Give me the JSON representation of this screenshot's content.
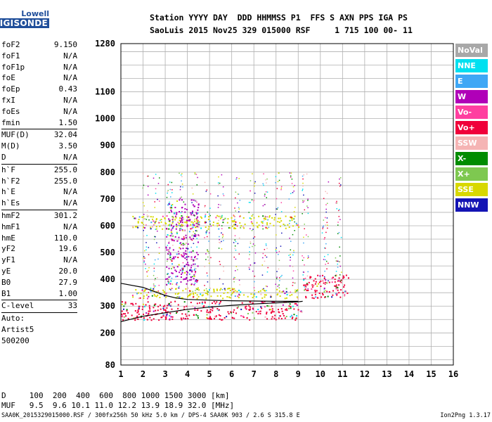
{
  "logo": {
    "line1": "Lowell",
    "line2": "DIGISONDE"
  },
  "header": {
    "line1": "Station YYYY DAY  DDD HHMMSS P1  FFS S AXN PPS IGA PS",
    "line2": "SaoLuis 2015 Nov25 329 015000 RSF     1 715 100 00- 11"
  },
  "params": {
    "g1": [
      {
        "name": "foF2",
        "value": "9.150"
      },
      {
        "name": "foF1",
        "value": "N/A"
      },
      {
        "name": "foF1p",
        "value": "N/A"
      },
      {
        "name": "foE",
        "value": "N/A"
      },
      {
        "name": "foEp",
        "value": "0.43"
      },
      {
        "name": "fxI",
        "value": "N/A"
      },
      {
        "name": "foEs",
        "value": "N/A"
      },
      {
        "name": "fmin",
        "value": "1.50"
      }
    ],
    "g2": [
      {
        "name": "MUF(D)",
        "value": "32.04"
      },
      {
        "name": "M(D)",
        "value": "3.50"
      },
      {
        "name": "D",
        "value": "N/A"
      }
    ],
    "g3": [
      {
        "name": "h`F",
        "value": "255.0"
      },
      {
        "name": "h`F2",
        "value": "255.0"
      },
      {
        "name": "h`E",
        "value": "N/A"
      },
      {
        "name": "h`Es",
        "value": "N/A"
      }
    ],
    "g4": [
      {
        "name": "hmF2",
        "value": "301.2"
      },
      {
        "name": "hmF1",
        "value": "N/A"
      },
      {
        "name": "hmE",
        "value": "110.0"
      },
      {
        "name": "yF2",
        "value": "19.6"
      },
      {
        "name": "yF1",
        "value": "N/A"
      },
      {
        "name": "yE",
        "value": "20.0"
      },
      {
        "name": "B0",
        "value": "27.9"
      },
      {
        "name": "B1",
        "value": "1.00"
      }
    ],
    "g5": [
      {
        "name": "C-level",
        "value": "33"
      }
    ],
    "g6": [
      "Auto:",
      "Artist5",
      "500200"
    ]
  },
  "legend": [
    {
      "label": "NoVal",
      "color": "#a8a8a8"
    },
    {
      "label": "NNE",
      "color": "#00e0f0"
    },
    {
      "label": "E",
      "color": "#3fa7f5"
    },
    {
      "label": "W",
      "color": "#b000b8"
    },
    {
      "label": "Vo-",
      "color": "#ff3fa0"
    },
    {
      "label": "Vo+",
      "color": "#f0003a"
    },
    {
      "label": "SSW",
      "color": "#f5b4b4"
    },
    {
      "label": "X-",
      "color": "#008c00"
    },
    {
      "label": "X+",
      "color": "#7ec850"
    },
    {
      "label": "SSE",
      "color": "#d8d800"
    },
    {
      "label": "NNW",
      "color": "#1414b4"
    }
  ],
  "footer": {
    "d_line": "D     100  200  400  600  800 1000 1500 3000 [km]",
    "muf_line": "MUF   9.5  9.6 10.1 11.0 12.2 13.9 18.9 32.0 [MHz]",
    "file_line": "SAA0K_2015329015000.RSF / 300fx256h 50 kHz 5.0 km / DPS-4 SAA0K 903 / 2.6 S 315.8 E",
    "version": "Ion2Png 1.3.17"
  },
  "chart_data": {
    "type": "scatter",
    "xlim": [
      1,
      16
    ],
    "ylim": [
      80,
      1280
    ],
    "x_ticks": [
      "1",
      "2",
      "3",
      "4",
      "5",
      "6",
      "7",
      "8",
      "9",
      "10",
      "11",
      "12",
      "13",
      "14",
      "15",
      "16"
    ],
    "y_ticks": [
      "80",
      "200",
      "300",
      "400",
      "500",
      "600",
      "700",
      "800",
      "900",
      "1000",
      "1100",
      "1280"
    ],
    "grid": true,
    "trace_bands": [
      {
        "x_range": [
          1.0,
          9.2
        ],
        "y": [
          250,
          320
        ],
        "color": "#f0003a"
      },
      {
        "x_range": [
          1.5,
          9.0
        ],
        "y": [
          330,
          370
        ],
        "color": "#d8d800"
      },
      {
        "x_range": [
          1.5,
          9.0
        ],
        "y": [
          590,
          640
        ],
        "color": "#d8d800"
      },
      {
        "x_range": [
          9.2,
          11.3
        ],
        "y": [
          330,
          420
        ],
        "color": "#f0003a"
      },
      {
        "x_range": [
          3.0,
          4.5
        ],
        "y": [
          380,
          700
        ],
        "color": "#b000b8"
      }
    ],
    "profile_lines": [
      {
        "x": [
          1.0,
          2.0,
          3.0,
          4.0,
          5.0,
          6.0,
          7.0,
          8.0,
          9.0,
          9.2
        ],
        "y": [
          242,
          262,
          275,
          288,
          296,
          303,
          308,
          312,
          316,
          318
        ]
      },
      {
        "x": [
          1.0,
          2.0,
          2.5,
          3.0,
          3.5,
          4.0,
          5.0,
          6.0,
          7.0,
          8.0,
          9.0
        ],
        "y": [
          385,
          370,
          355,
          340,
          330,
          325,
          322,
          320,
          319,
          318,
          318
        ]
      }
    ]
  }
}
